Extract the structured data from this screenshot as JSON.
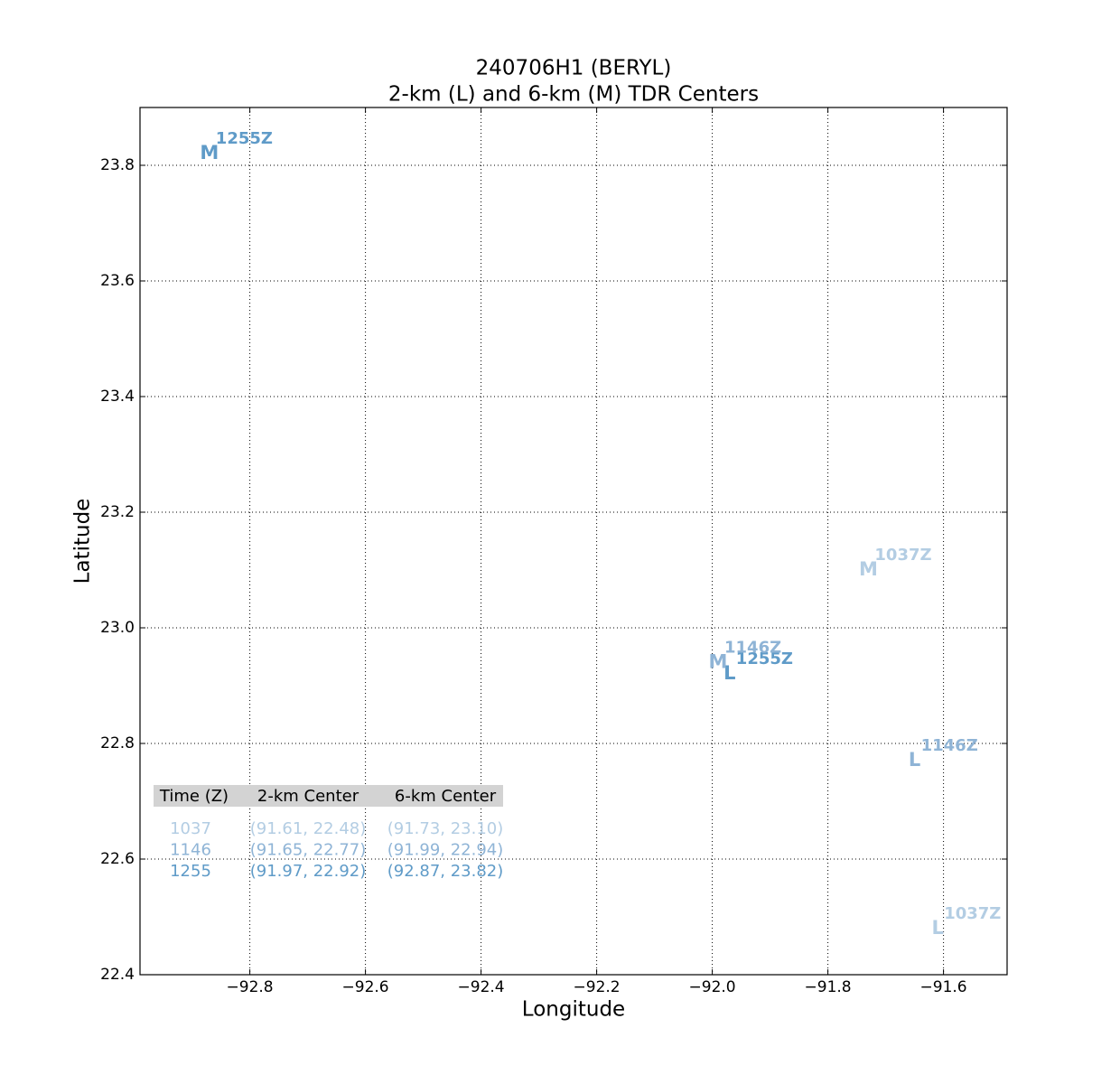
{
  "chart_data": {
    "type": "scatter",
    "title": "240706H1 (BERYL)",
    "subtitle": "2-km (L) and 6-km (M) TDR Centers",
    "x_label": "Longitude",
    "y_label": "Latitude",
    "xlim": [
      -92.99,
      -91.49
    ],
    "ylim": [
      22.4,
      23.9
    ],
    "xticks": [
      {
        "value": -92.8,
        "label": "−92.8"
      },
      {
        "value": -92.6,
        "label": "−92.6"
      },
      {
        "value": -92.4,
        "label": "−92.4"
      },
      {
        "value": -92.2,
        "label": "−92.2"
      },
      {
        "value": -92.0,
        "label": "−92.0"
      },
      {
        "value": -91.8,
        "label": "−91.8"
      },
      {
        "value": -91.6,
        "label": "−91.6"
      }
    ],
    "yticks": [
      22.4,
      22.6,
      22.8,
      {
        "value": 23.0,
        "label": "23.0"
      },
      23.2,
      23.4,
      23.6,
      23.8
    ],
    "grid": true,
    "series": [
      {
        "marker": "L",
        "x": [
          -91.61,
          -91.65,
          -91.97
        ],
        "y": [
          22.48,
          22.77,
          22.92
        ],
        "point_labels": [
          "1037Z",
          "1146Z",
          "1255Z"
        ],
        "colors": [
          "#b3cde3",
          "#8fb4d6",
          "#5f9bc8"
        ]
      },
      {
        "marker": "M",
        "x": [
          -91.73,
          -91.99,
          -92.87
        ],
        "y": [
          23.1,
          22.94,
          23.82
        ],
        "point_labels": [
          "1037Z",
          "1146Z",
          "1255Z"
        ],
        "colors": [
          "#b3cde3",
          "#8fb4d6",
          "#5f9bc8"
        ]
      }
    ],
    "table": {
      "header": [
        "Time (Z)",
        "2-km Center",
        "6-km Center"
      ],
      "rows": [
        [
          "1037",
          "(91.61, 22.48)",
          "(91.73, 23.10)"
        ],
        [
          "1146",
          "(91.65, 22.77)",
          "(91.99, 22.94)"
        ],
        [
          "1255",
          "(91.97, 22.92)",
          "(92.87, 23.82)"
        ]
      ],
      "row_colors": [
        "#b3cde3",
        "#8fb4d6",
        "#5f9bc8"
      ]
    }
  }
}
